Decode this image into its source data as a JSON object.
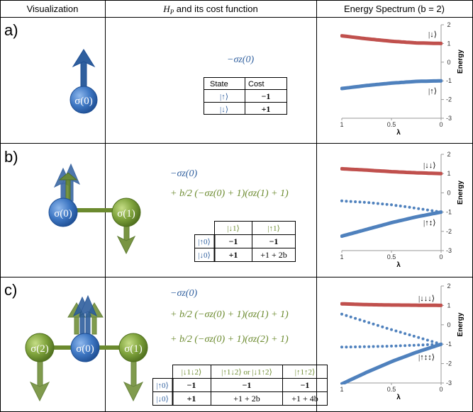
{
  "header": {
    "col1": "Visualization",
    "col2_pre": "H",
    "col2_sub": "P",
    "col2_post": " and its cost function",
    "col3": "Energy Spectrum (b = 2)"
  },
  "panels": [
    {
      "label": "a)",
      "sigmas": [
        "σ(0)"
      ],
      "hamiltonian": [
        "−σz(0)"
      ],
      "table": {
        "head": [
          "State",
          "Cost"
        ],
        "rows": [
          [
            "|↑⟩",
            "−1"
          ],
          [
            "|↓⟩",
            "+1"
          ]
        ]
      },
      "spectrum_labels": [
        "|↓⟩",
        "|↑⟩"
      ]
    },
    {
      "label": "b)",
      "sigmas": [
        "σ(0)",
        "σ(1)"
      ],
      "hamiltonian": [
        "−σz(0)",
        "+ b/2 (−σz(0) + 1)(σz(1) + 1)"
      ],
      "table": {
        "cols": [
          "|↓1⟩",
          "|↑1⟩"
        ],
        "rows": [
          {
            "head": "|↑0⟩",
            "cells": [
              "−1",
              "−1"
            ]
          },
          {
            "head": "|↓0⟩",
            "cells": [
              "+1",
              "+1 + 2b"
            ]
          }
        ]
      },
      "spectrum_labels": [
        "|↓↓⟩",
        "|↑↕⟩"
      ]
    },
    {
      "label": "c)",
      "sigmas": [
        "σ(2)",
        "σ(0)",
        "σ(1)"
      ],
      "hamiltonian": [
        "−σz(0)",
        "+ b/2 (−σz(0) + 1)(σz(1) + 1)",
        "+ b/2 (−σz(0) + 1)(σz(2) + 1)"
      ],
      "table": {
        "cols": [
          "|↓1↓2⟩",
          "|↑1↓2⟩ or |↓1↑2⟩",
          "|↑1↑2⟩"
        ],
        "rows": [
          {
            "head": "|↑0⟩",
            "cells": [
              "−1",
              "−1",
              "−1"
            ]
          },
          {
            "head": "|↓0⟩",
            "cells": [
              "+1",
              "+1 + 2b",
              "+1 + 4b"
            ]
          }
        ]
      },
      "spectrum_labels": [
        "|↓↓↓⟩",
        "|↑↕↕⟩"
      ]
    }
  ],
  "chart_data": [
    {
      "type": "line",
      "panel": "a",
      "xlabel": "λ",
      "ylabel": "Energy",
      "xlim": [
        1,
        0
      ],
      "ylim": [
        -3,
        2
      ],
      "xticks": [
        1,
        0.5,
        0
      ],
      "yticks": [
        2,
        1,
        0,
        -1,
        -2,
        -3
      ],
      "series": [
        {
          "style": "solid",
          "color": "#c0504d",
          "x": [
            1,
            0.75,
            0.5,
            0.25,
            0
          ],
          "y": [
            1.41,
            1.25,
            1.12,
            1.03,
            1.0
          ]
        },
        {
          "style": "solid",
          "color": "#4f81bd",
          "x": [
            1,
            0.75,
            0.5,
            0.25,
            0
          ],
          "y": [
            -1.41,
            -1.25,
            -1.12,
            -1.03,
            -1.0
          ]
        }
      ]
    },
    {
      "type": "line",
      "panel": "b",
      "xlabel": "λ",
      "ylabel": "Energy",
      "xlim": [
        1,
        0
      ],
      "ylim": [
        -3,
        2
      ],
      "xticks": [
        1,
        0.5,
        0
      ],
      "yticks": [
        2,
        1,
        0,
        -1,
        -2,
        -3
      ],
      "series": [
        {
          "style": "solid",
          "color": "#c0504d",
          "x": [
            1,
            0.75,
            0.5,
            0.25,
            0
          ],
          "y": [
            1.25,
            1.18,
            1.1,
            1.04,
            1.0
          ]
        },
        {
          "style": "dotted",
          "color": "#4f81bd",
          "x": [
            1,
            0.75,
            0.5,
            0.25,
            0
          ],
          "y": [
            -0.42,
            -0.5,
            -0.62,
            -0.8,
            -1.0
          ]
        },
        {
          "style": "solid",
          "color": "#4f81bd",
          "x": [
            1,
            0.75,
            0.5,
            0.25,
            0
          ],
          "y": [
            -2.25,
            -1.9,
            -1.55,
            -1.25,
            -1.0
          ]
        }
      ]
    },
    {
      "type": "line",
      "panel": "c",
      "xlabel": "λ",
      "ylabel": "Energy",
      "xlim": [
        1,
        0
      ],
      "ylim": [
        -3,
        2
      ],
      "xticks": [
        1,
        0.5,
        0
      ],
      "yticks": [
        2,
        1,
        0,
        -1,
        -2,
        -3
      ],
      "series": [
        {
          "style": "solid",
          "color": "#c0504d",
          "x": [
            1,
            0.75,
            0.5,
            0.25,
            0
          ],
          "y": [
            1.08,
            1.04,
            1.02,
            1.01,
            1.0
          ]
        },
        {
          "style": "dotted",
          "color": "#4f81bd",
          "x": [
            1,
            0.75,
            0.5,
            0.25,
            0
          ],
          "y": [
            0.55,
            0.15,
            -0.25,
            -0.62,
            -1.0
          ]
        },
        {
          "style": "dotted",
          "color": "#4f81bd",
          "x": [
            1,
            0.75,
            0.5,
            0.25,
            0
          ],
          "y": [
            -1.15,
            -1.13,
            -1.1,
            -1.05,
            -1.0
          ]
        },
        {
          "style": "solid",
          "color": "#4f81bd",
          "x": [
            1,
            0.75,
            0.5,
            0.25,
            0
          ],
          "y": [
            -3.05,
            -2.45,
            -1.9,
            -1.42,
            -1.0
          ]
        }
      ]
    }
  ]
}
